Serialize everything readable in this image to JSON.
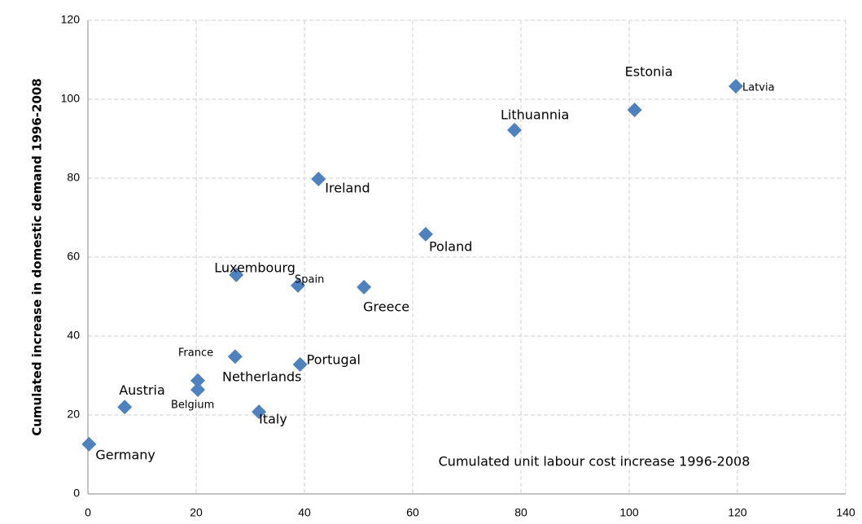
{
  "chart_data": {
    "type": "scatter",
    "x_label": "Cumulated unit labour cost increase 1996-2008",
    "y_label": "Cumulated increase in domestic demand 1996-2008",
    "labels": [
      "Germany",
      "Austria",
      "Belgium",
      "Netherlands",
      "France",
      "Italy",
      "Luxembourg",
      "Spain",
      "Portugal",
      "Greece",
      "Ireland",
      "Poland",
      "Lithuannia",
      "Estonia",
      "Latvia"
    ],
    "x": [
      0.2,
      6.8,
      20.3,
      20.3,
      27.2,
      31.6,
      27.4,
      38.8,
      39.2,
      51,
      42.6,
      62.4,
      78.8,
      101,
      119.7
    ],
    "values": [
      12.6,
      22,
      26.4,
      28.7,
      34.8,
      20.8,
      55.5,
      52.8,
      32.8,
      52.4,
      79.8,
      65.8,
      92.2,
      97.3,
      103.3
    ],
    "color": "#4f81bd",
    "xlim": [
      0,
      140
    ],
    "xticks": [
      0,
      20,
      40,
      60,
      80,
      100,
      120,
      140
    ],
    "ylim": [
      0,
      120
    ],
    "yticks": [
      0,
      20,
      40,
      60,
      80,
      100,
      120
    ],
    "grid": true
  }
}
